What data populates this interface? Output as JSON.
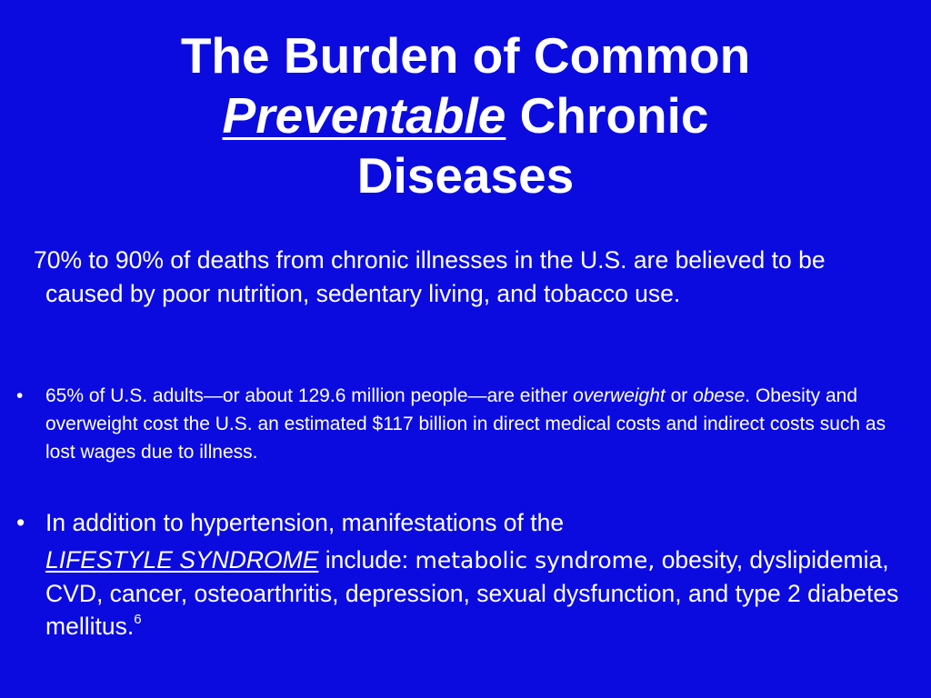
{
  "title": {
    "line1": "The Burden of Common",
    "emphasis": "Preventable",
    "line2_rest": "Chronic",
    "line3": "Diseases"
  },
  "intro": {
    "first_line": "70% to 90% of deaths from chronic illnesses in the U.S. are",
    "rest": "believed to be caused by poor nutrition, sedentary living, and tobacco use."
  },
  "bullet1": {
    "marker": "•",
    "part1": "65% of U.S. adults—or about 129.6 million people—are either ",
    "overweight": "overweight",
    "part2": " or ",
    "obese": "obese",
    "part3": ". Obesity and overweight cost the U.S. an estimated $117 billion in direct medical costs and indirect costs such as lost wages due to illness."
  },
  "bullet2": {
    "marker": "•",
    "line1": "In addition to hypertension, manifestations of the",
    "lifestyle": "LIFESTYLE SYNDROME",
    "include": " include: ",
    "metabolic": "metabolic syndrome,",
    "rest": " obesity, dyslipidemia, CVD, cancer, osteoarthritis, depression, sexual dysfunction, and type 2 diabetes mellitus.",
    "footnote": "6"
  },
  "colors": {
    "background": "#0b0be0",
    "text": "#ffffff"
  }
}
